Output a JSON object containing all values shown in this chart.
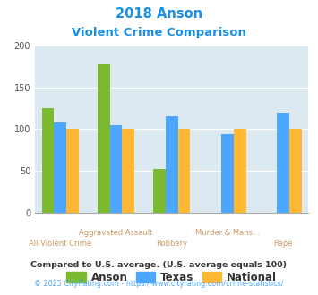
{
  "title_line1": "2018 Anson",
  "title_line2": "Violent Crime Comparison",
  "title_color": "#1a8fe3",
  "anson_values": [
    125,
    178,
    52,
    null,
    null
  ],
  "texas_values": [
    108,
    105,
    115,
    94,
    120
  ],
  "national_values": [
    100,
    100,
    100,
    100,
    100
  ],
  "anson_color": "#7cba2f",
  "texas_color": "#4da6ff",
  "national_color": "#ffb833",
  "ylim": [
    0,
    200
  ],
  "yticks": [
    0,
    50,
    100,
    150,
    200
  ],
  "bg_color": "#dce9f0",
  "fig_bg": "#ffffff",
  "legend_labels": [
    "Anson",
    "Texas",
    "National"
  ],
  "footnote1": "Compared to U.S. average. (U.S. average equals 100)",
  "footnote2": "© 2025 CityRating.com - https://www.cityrating.com/crime-statistics/",
  "footnote1_color": "#333333",
  "footnote2_color": "#4da6ff",
  "xlabel_color": "#cc9966",
  "top_labels": [
    "",
    "Aggravated Assault",
    "",
    "Murder & Mans...",
    ""
  ],
  "bottom_labels": [
    "All Violent Crime",
    "",
    "Robbery",
    "",
    "Rape"
  ]
}
